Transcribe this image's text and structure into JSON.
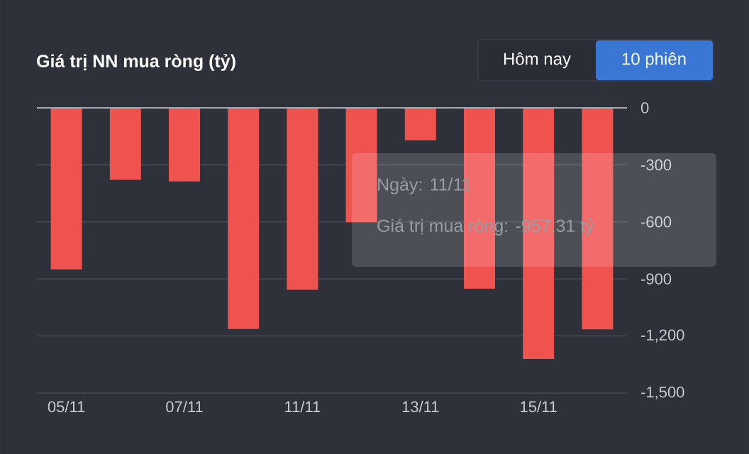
{
  "chart_data": {
    "type": "bar",
    "title": "Giá trị NN mua ròng (tỷ)",
    "categories": [
      "05/11",
      null,
      "07/11",
      null,
      "11/11",
      null,
      "13/11",
      null,
      "15/11",
      null
    ],
    "values": [
      -850,
      -379,
      -387,
      -1163,
      -957.31,
      -602,
      -171,
      -952,
      -1321,
      -1165
    ],
    "color": "#ef5350",
    "ylim": [
      -1500,
      0
    ],
    "yticks": [
      0,
      -300,
      -600,
      -900,
      {
        "value": -1200,
        "label": "-1,200"
      },
      {
        "value": -1500,
        "label": "-1,500"
      }
    ],
    "grid": "y",
    "annotations": [
      "Hôm nay",
      "10 phiên",
      "Ngày: 11/11",
      "Giá trị mua ròng: -957.31 tỷ"
    ]
  }
}
